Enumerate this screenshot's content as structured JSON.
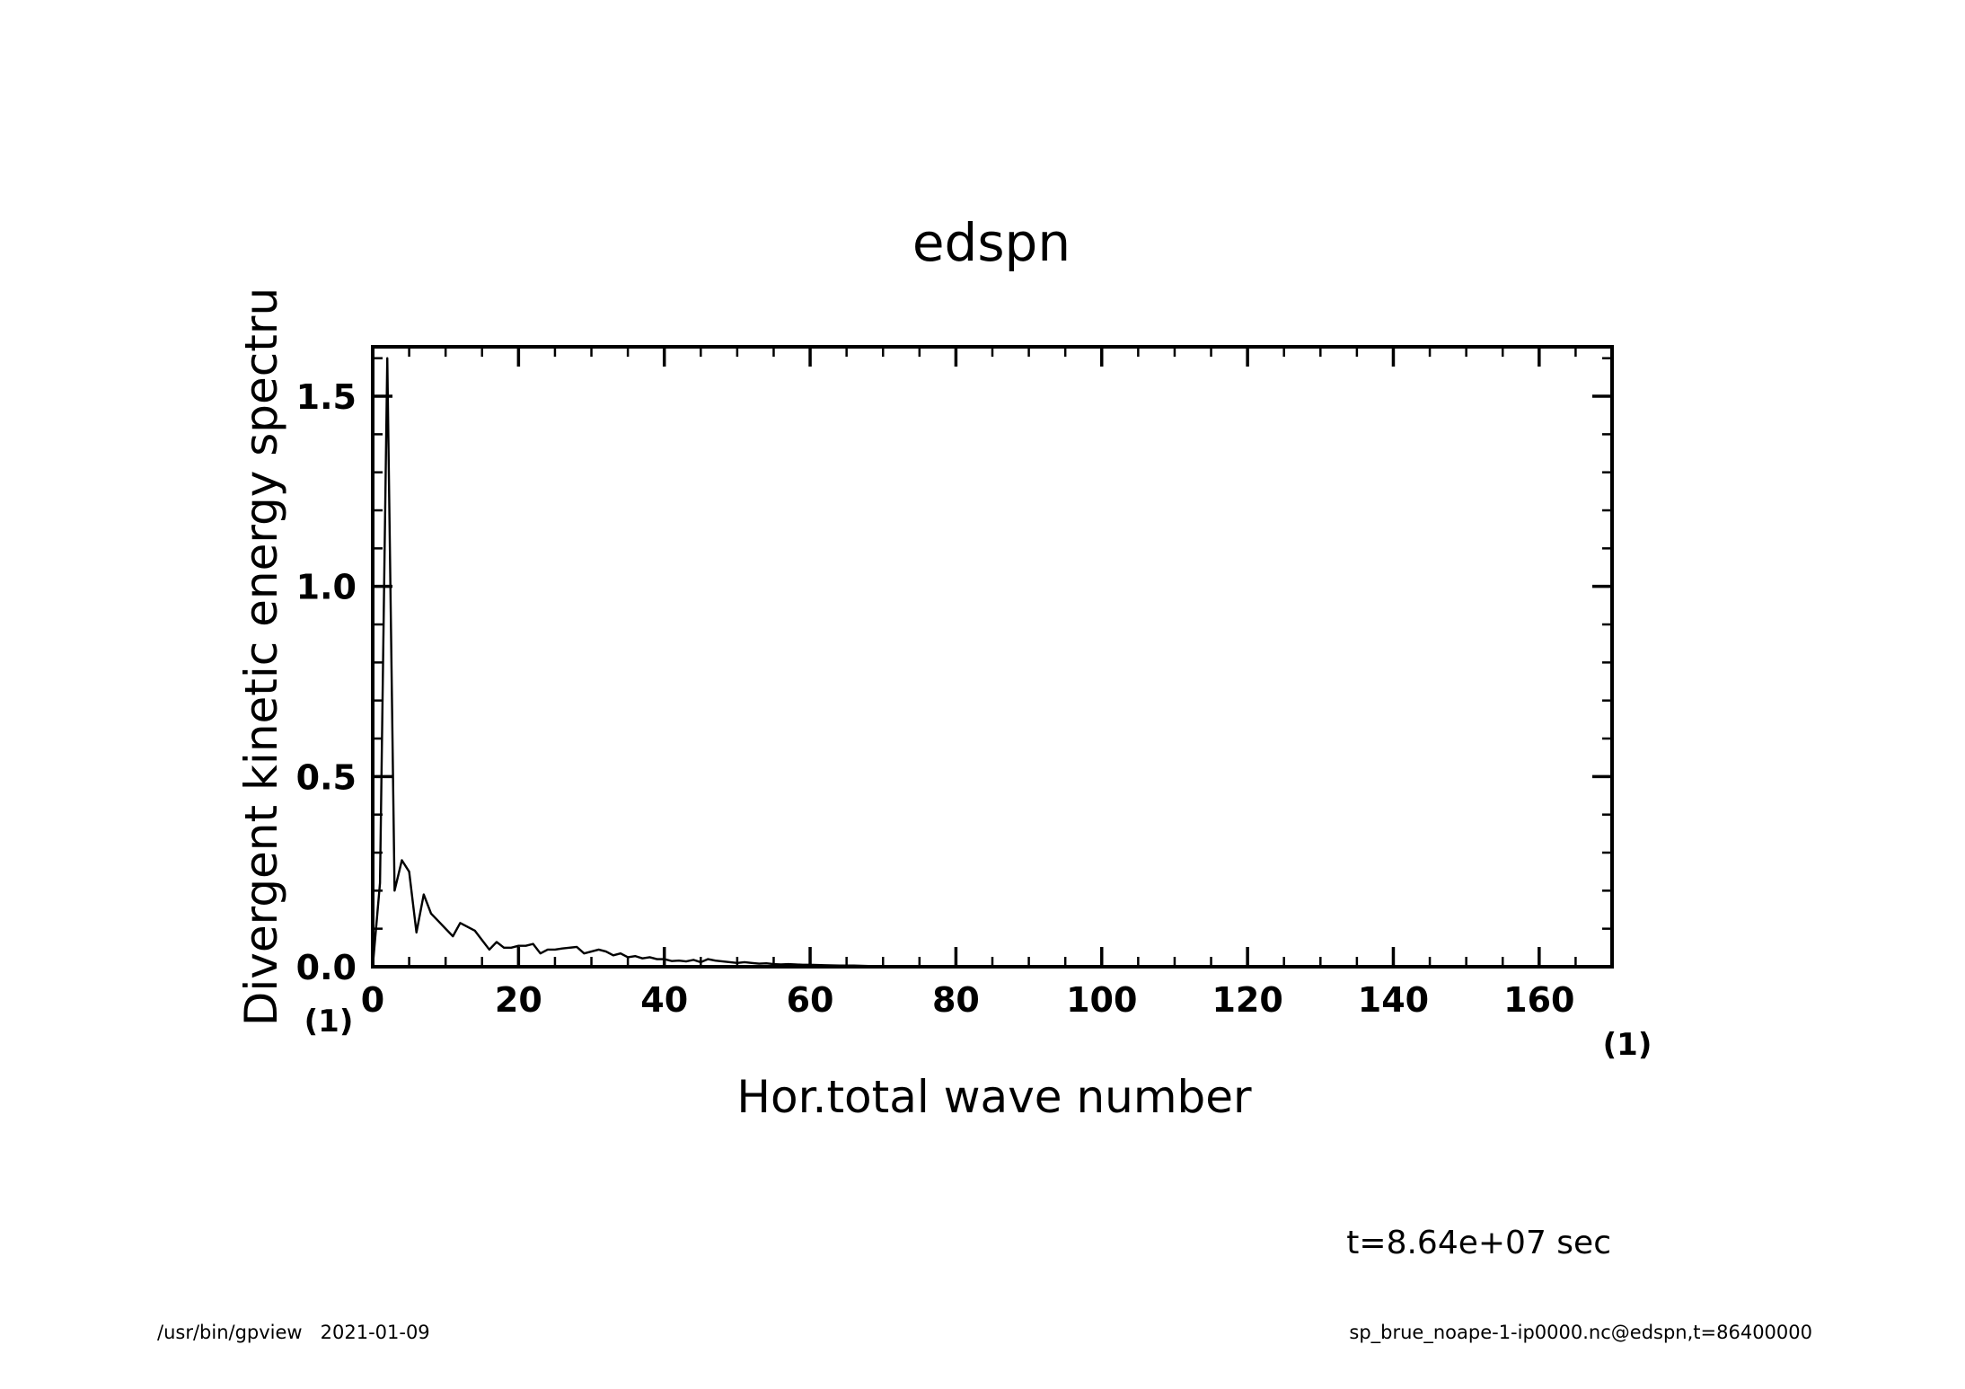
{
  "chart_data": {
    "type": "line",
    "title": "edspn",
    "xlabel": "Hor.total wave number",
    "ylabel": "Divergent kinetic energy spectru",
    "x_unit": "(1)",
    "y_unit": "(1)",
    "xlim": [
      0,
      170
    ],
    "ylim": [
      0,
      1.63
    ],
    "x_ticks": [
      "0",
      "20",
      "40",
      "60",
      "80",
      "100",
      "120",
      "140",
      "160"
    ],
    "y_ticks": [
      "0.0",
      "0.5",
      "1.0",
      "1.5"
    ],
    "grid": false,
    "legend": "none",
    "series": [
      {
        "x": [
          0,
          1,
          2,
          3,
          4,
          5,
          6,
          7,
          8,
          9,
          10,
          11,
          12,
          13,
          14,
          15,
          16,
          17,
          18,
          19,
          20,
          21,
          22,
          23,
          24,
          25,
          26,
          27,
          28,
          29,
          30,
          31,
          32,
          33,
          34,
          35,
          36,
          37,
          38,
          39,
          40,
          41,
          42,
          43,
          44,
          45,
          46,
          47,
          48,
          49,
          50,
          51,
          52,
          53,
          54,
          55,
          56,
          57,
          58,
          59,
          60,
          62,
          64,
          66,
          68,
          70,
          75,
          80,
          90,
          100,
          120,
          140,
          170
        ],
        "values": [
          0.0,
          0.22,
          1.6,
          0.2,
          0.28,
          0.25,
          0.09,
          0.19,
          0.14,
          0.12,
          0.1,
          0.08,
          0.115,
          0.105,
          0.095,
          0.07,
          0.045,
          0.065,
          0.05,
          0.05,
          0.055,
          0.055,
          0.06,
          0.035,
          0.045,
          0.045,
          0.048,
          0.05,
          0.052,
          0.035,
          0.04,
          0.045,
          0.04,
          0.03,
          0.035,
          0.025,
          0.028,
          0.022,
          0.025,
          0.02,
          0.02,
          0.015,
          0.016,
          0.014,
          0.018,
          0.012,
          0.02,
          0.016,
          0.014,
          0.012,
          0.01,
          0.012,
          0.01,
          0.008,
          0.009,
          0.007,
          0.006,
          0.007,
          0.006,
          0.005,
          0.005,
          0.004,
          0.003,
          0.003,
          0.002,
          0.002,
          0.001,
          0.001,
          0.001,
          0.0,
          0.0,
          0.0,
          0.0
        ]
      }
    ]
  },
  "annotations": {
    "time": "t=8.64e+07 sec",
    "footer_left": "/usr/bin/gpview   2021-01-09",
    "footer_right": "sp_brue_noape-1-ip0000.nc@edspn,t=86400000"
  }
}
